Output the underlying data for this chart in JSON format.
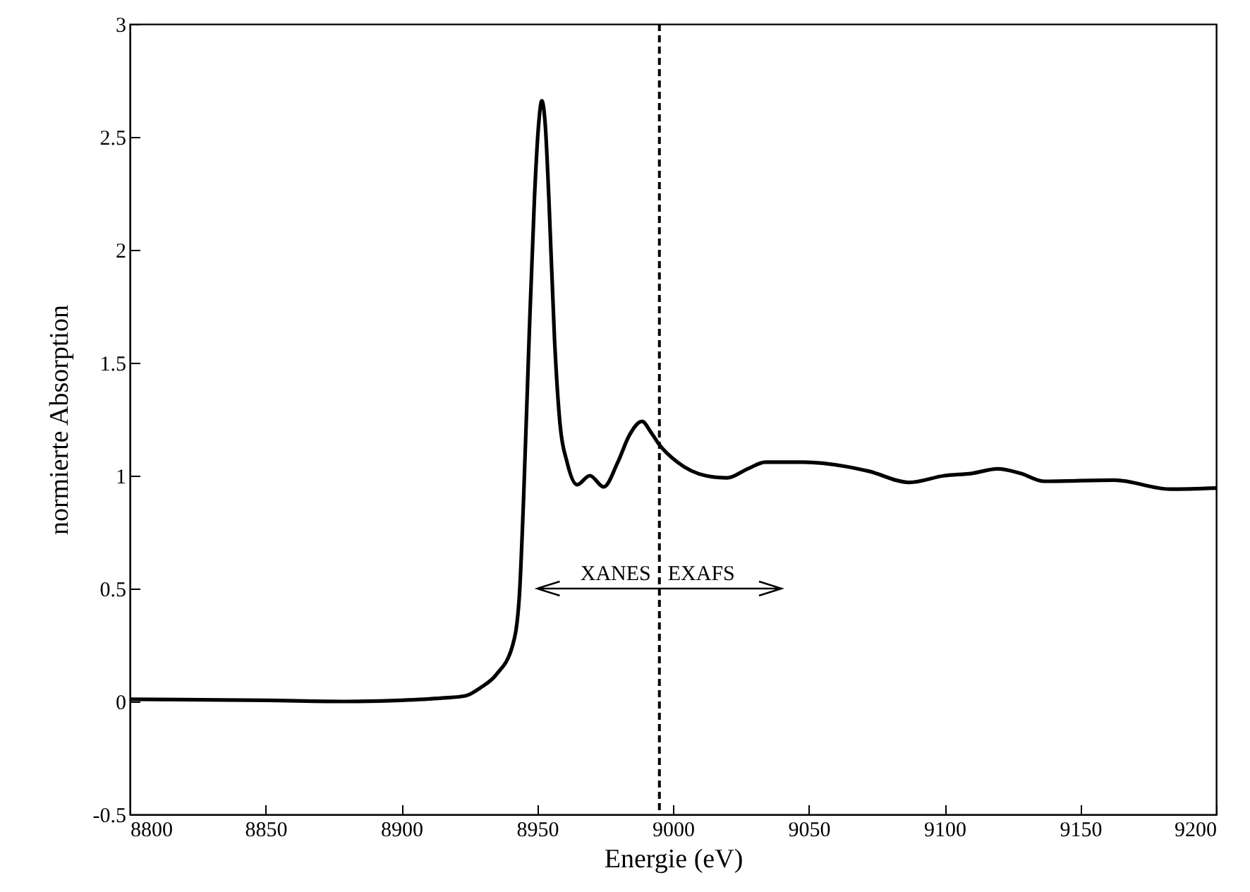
{
  "chart_data": {
    "type": "line",
    "xlabel": "Energie (eV)",
    "ylabel": "normierte Absorption",
    "xlim": [
      8800,
      9200
    ],
    "xticks": [
      8800,
      8850,
      8900,
      8950,
      9000,
      9050,
      9100,
      9150,
      9200
    ],
    "ylim": [
      -0.5,
      3
    ],
    "yticks": [
      -0.5,
      0,
      0.5,
      1,
      1.5,
      2,
      2.5,
      3
    ],
    "grid": false,
    "marker": "none",
    "line_style": "solid",
    "series": [
      {
        "color": "#000000",
        "x": [
          8800,
          8850,
          8880,
          8900,
          8915,
          8923.6,
          8929,
          8935,
          8941,
          8943.4,
          8945,
          8947,
          8949,
          8950.5,
          8951.7,
          8953,
          8954.3,
          8956.4,
          8958.4,
          8961,
          8964.7,
          8969.4,
          8974.5,
          8979.7,
          8984,
          8988.6,
          8992,
          8994.8,
          9001.6,
          9012,
          9020,
          9027.5,
          9034,
          9048,
          9064,
          9072,
          9087,
          9100,
          9110,
          9119.5,
          9128,
          9136.6,
          9162.6,
          9183,
          9200
        ],
        "values": [
          0.01,
          0.005,
          0.0,
          0.005,
          0.015,
          0.025,
          0.06,
          0.12,
          0.25,
          0.46,
          0.9,
          1.6,
          2.23,
          2.55,
          2.66,
          2.55,
          2.23,
          1.6,
          1.23,
          1.06,
          0.96,
          1.0,
          0.95,
          1.06,
          1.18,
          1.24,
          1.19,
          1.14,
          1.06,
          1.0,
          0.99,
          1.03,
          1.06,
          1.06,
          1.04,
          1.02,
          0.97,
          1.0,
          1.01,
          1.03,
          1.01,
          0.975,
          0.98,
          0.94,
          0.945
        ]
      }
    ],
    "ref_lines": [
      {
        "axis": "x",
        "value": 8995,
        "color": "#000000",
        "line_style": "dashed"
      }
    ],
    "annotations": [
      "XANES",
      "EXAFS"
    ]
  }
}
